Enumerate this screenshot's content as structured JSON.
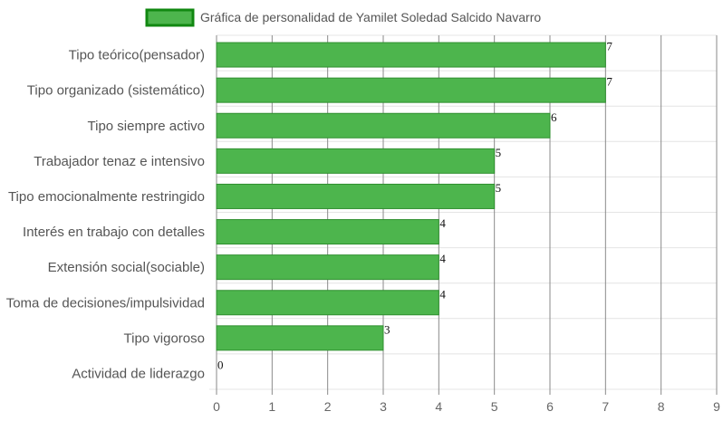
{
  "chart_data": {
    "type": "bar",
    "orientation": "horizontal",
    "categories": [
      "Tipo teórico(pensador)",
      "Tipo organizado (sistemático)",
      "Tipo siempre activo",
      "Trabajador tenaz e intensivo",
      "Tipo emocionalmente restringido",
      "Interés en trabajo con detalles",
      "Extensión social(sociable)",
      "Toma de decisiones/impulsividad",
      "Tipo vigoroso",
      "Actividad de liderazgo"
    ],
    "series": [
      {
        "name": "Gráfica de personalidad de Yamilet Soledad Salcido Navarro",
        "values": [
          7,
          7,
          6,
          5,
          5,
          4,
          4,
          4,
          3,
          0
        ]
      }
    ],
    "xlim": [
      0,
      9
    ],
    "xticks": [
      "0",
      "1",
      "2",
      "3",
      "4",
      "5",
      "6",
      "7",
      "8",
      "9"
    ],
    "grid": true,
    "legend_position": "top",
    "colors": {
      "bar_fill": "#4db54d",
      "bar_border": "#2f8f2f",
      "legend_fill": "#4db54d",
      "legend_border": "#118811",
      "grid": "#e4e4e4",
      "tick_grid": "#8a8a8a"
    }
  }
}
